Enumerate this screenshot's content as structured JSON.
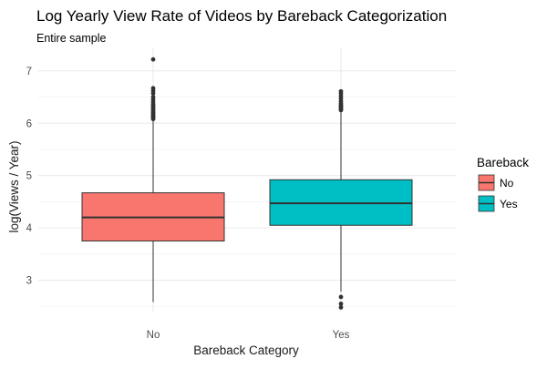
{
  "chart_data": {
    "type": "boxplot",
    "title": "Log Yearly View Rate of Videos by Bareback Categorization",
    "subtitle": "Entire sample",
    "xlabel": "Bareback Category",
    "ylabel": "log(Views / Year)",
    "ylim": [
      2.4,
      7.45
    ],
    "yticks": [
      3,
      4,
      5,
      6,
      7
    ],
    "categories": [
      "No",
      "Yes"
    ],
    "grid": true,
    "legend": {
      "title": "Bareback",
      "position": "right",
      "entries": [
        {
          "label": "No",
          "color": "#F8766D"
        },
        {
          "label": "Yes",
          "color": "#00BFC4"
        }
      ]
    },
    "series": [
      {
        "category": "No",
        "color": "#F8766D",
        "whisker_low": 2.58,
        "q1": 3.75,
        "median": 4.2,
        "q3": 4.67,
        "whisker_high": 6.05,
        "outliers": [
          6.08,
          6.1,
          6.12,
          6.14,
          6.16,
          6.18,
          6.2,
          6.22,
          6.25,
          6.27,
          6.3,
          6.33,
          6.36,
          6.4,
          6.45,
          6.5,
          6.57,
          6.62,
          6.67,
          7.22
        ]
      },
      {
        "category": "Yes",
        "color": "#00BFC4",
        "whisker_low": 2.78,
        "q1": 4.05,
        "median": 4.47,
        "q3": 4.92,
        "whisker_high": 6.22,
        "outliers": [
          6.25,
          6.27,
          6.29,
          6.31,
          6.33,
          6.35,
          6.38,
          6.42,
          6.47,
          6.52,
          6.57,
          6.61,
          2.68,
          2.55,
          2.48
        ]
      }
    ]
  }
}
